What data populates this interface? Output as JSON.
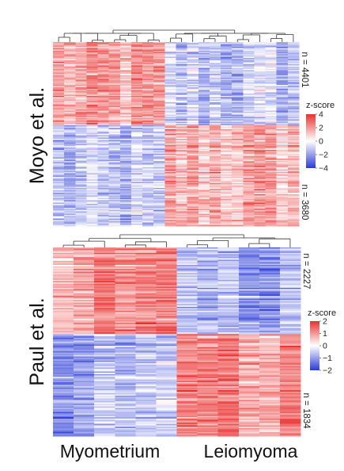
{
  "chart_data": [
    {
      "type": "heatmap",
      "title": "",
      "ylabel": "Moyo et al.",
      "row_groups": [
        {
          "label": "n = 4401",
          "pattern": "higher in Myometrium"
        },
        {
          "label": "n = 3680",
          "pattern": "higher in Leiomyoma"
        }
      ],
      "column_groups": [
        "Myometrium",
        "Leiomyoma"
      ],
      "columns_per_group": [
        10,
        12
      ],
      "colorbar": {
        "title": "z-score",
        "ticks": [
          4,
          2,
          0,
          -2,
          -4
        ],
        "tick_labels": [
          "4",
          "2",
          "0",
          "−2",
          "−4"
        ],
        "range": [
          -4,
          4
        ]
      },
      "colors": {
        "high": "#e8312f",
        "mid": "#ffffff",
        "low": "#2b3bd6"
      },
      "dendrogram": "columns"
    },
    {
      "type": "heatmap",
      "title": "",
      "ylabel": "Paul et al.",
      "row_groups": [
        {
          "label": "n = 2227",
          "pattern": "higher in Myometrium"
        },
        {
          "label": "n = 1834",
          "pattern": "higher in Leiomyoma"
        }
      ],
      "column_groups": [
        "Myometrium",
        "Leiomyoma"
      ],
      "columns_per_group": [
        6,
        6
      ],
      "colorbar": {
        "title": "z-score",
        "ticks": [
          2,
          1,
          0,
          -1,
          -2
        ],
        "tick_labels": [
          "2",
          "1",
          "0",
          "−1",
          "−2"
        ],
        "range": [
          -2,
          2
        ]
      },
      "colors": {
        "high": "#e8312f",
        "mid": "#ffffff",
        "low": "#2b3bd6"
      },
      "dendrogram": "columns"
    }
  ],
  "x_categories": [
    "Myometrium",
    "Leiomyoma"
  ]
}
